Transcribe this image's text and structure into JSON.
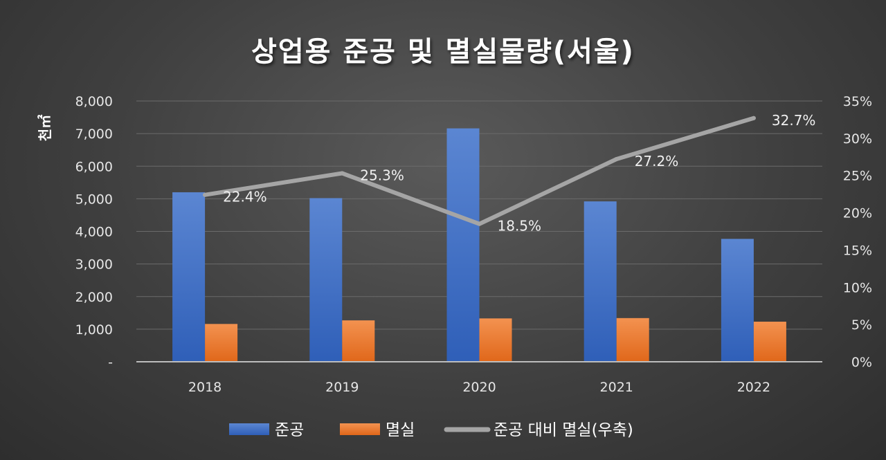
{
  "chart_data": {
    "type": "bar",
    "title": "상업용 준공 및 멸실물량(서울)",
    "ylabel": "천㎡",
    "categories": [
      "2018",
      "2019",
      "2020",
      "2021",
      "2022"
    ],
    "ylim": [
      0,
      8000
    ],
    "y_ticks": [
      "-",
      "1,000",
      "2,000",
      "3,000",
      "4,000",
      "5,000",
      "6,000",
      "7,000",
      "8,000"
    ],
    "y2lim": [
      0,
      35
    ],
    "y2_ticks": [
      "0%",
      "5%",
      "10%",
      "15%",
      "20%",
      "25%",
      "30%",
      "35%"
    ],
    "grid": true,
    "legend_position": "bottom",
    "series": [
      {
        "name": "준공",
        "type": "bar",
        "axis": "left",
        "color": "#4472c4",
        "values": [
          5200,
          5020,
          7160,
          4920,
          3770
        ]
      },
      {
        "name": "멸실",
        "type": "bar",
        "axis": "left",
        "color": "#ed7d31",
        "values": [
          1160,
          1270,
          1330,
          1340,
          1230
        ]
      },
      {
        "name": "준공 대비 멸실(우축)",
        "type": "line",
        "axis": "right",
        "color": "#a5a5a5",
        "values": [
          22.4,
          25.3,
          18.5,
          27.2,
          32.7
        ],
        "labels": [
          "22.4%",
          "25.3%",
          "18.5%",
          "27.2%",
          "32.7%"
        ]
      }
    ]
  }
}
